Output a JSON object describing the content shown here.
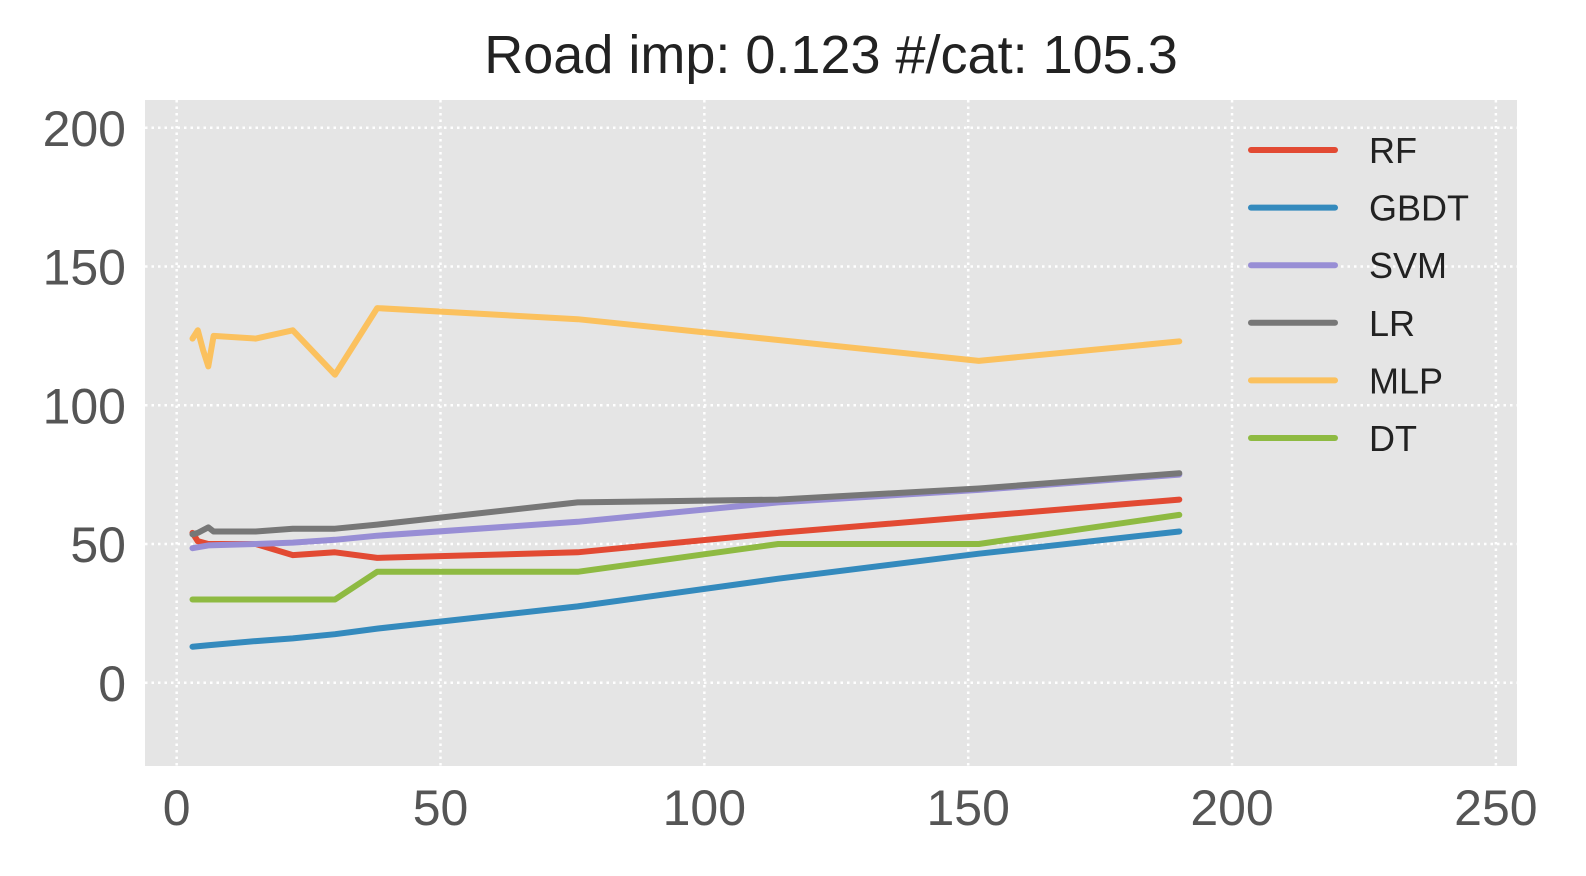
{
  "chart_data": {
    "type": "line",
    "title": "Road imp: 0.123 #/cat: 105.3",
    "xlabel": "",
    "ylabel": "",
    "xlim": [
      -6,
      254
    ],
    "ylim": [
      -30,
      210
    ],
    "x_ticks": [
      0,
      50,
      100,
      150,
      200,
      250
    ],
    "y_ticks": [
      0,
      50,
      100,
      150,
      200
    ],
    "grid": true,
    "legend_position": "upper-right",
    "background_color": "#E5E5E5",
    "grid_color": "#FFFFFF",
    "series": [
      {
        "name": "RF",
        "color": "#E24A33",
        "points": [
          [
            3,
            54
          ],
          [
            4,
            51
          ],
          [
            6,
            50
          ],
          [
            15,
            50
          ],
          [
            22,
            46
          ],
          [
            30,
            47
          ],
          [
            38,
            45
          ],
          [
            76,
            47
          ],
          [
            114,
            54
          ],
          [
            152,
            60
          ],
          [
            190,
            66
          ]
        ]
      },
      {
        "name": "GBDT",
        "color": "#348ABD",
        "points": [
          [
            3,
            13
          ],
          [
            6,
            13.5
          ],
          [
            15,
            15
          ],
          [
            22,
            16
          ],
          [
            30,
            17.5
          ],
          [
            38,
            19.5
          ],
          [
            76,
            27.5
          ],
          [
            114,
            37.5
          ],
          [
            152,
            46.5
          ],
          [
            190,
            54.5
          ]
        ]
      },
      {
        "name": "SVM",
        "color": "#988ED5",
        "points": [
          [
            3,
            48.5
          ],
          [
            6,
            49.5
          ],
          [
            15,
            50
          ],
          [
            22,
            50.5
          ],
          [
            30,
            51.5
          ],
          [
            38,
            53
          ],
          [
            76,
            58
          ],
          [
            114,
            65
          ],
          [
            152,
            69.5
          ],
          [
            190,
            75
          ]
        ]
      },
      {
        "name": "LR",
        "color": "#777777",
        "points": [
          [
            3,
            53.5
          ],
          [
            4,
            54
          ],
          [
            6,
            56
          ],
          [
            7,
            54.5
          ],
          [
            15,
            54.5
          ],
          [
            22,
            55.5
          ],
          [
            30,
            55.5
          ],
          [
            38,
            57
          ],
          [
            76,
            65
          ],
          [
            114,
            66
          ],
          [
            152,
            70
          ],
          [
            190,
            75.5
          ]
        ]
      },
      {
        "name": "MLP",
        "color": "#FBC15E",
        "points": [
          [
            3,
            124
          ],
          [
            4,
            127
          ],
          [
            5,
            120
          ],
          [
            6,
            114
          ],
          [
            7,
            125
          ],
          [
            15,
            124
          ],
          [
            22,
            127
          ],
          [
            30,
            111
          ],
          [
            38,
            135
          ],
          [
            76,
            131
          ],
          [
            114,
            123.5
          ],
          [
            152,
            116
          ],
          [
            190,
            123
          ]
        ]
      },
      {
        "name": "DT",
        "color": "#8EBA42",
        "points": [
          [
            3,
            30
          ],
          [
            15,
            30
          ],
          [
            22,
            30
          ],
          [
            30,
            30
          ],
          [
            38,
            40
          ],
          [
            76,
            40
          ],
          [
            114,
            50
          ],
          [
            152,
            50
          ],
          [
            190,
            60.5
          ]
        ]
      }
    ]
  }
}
